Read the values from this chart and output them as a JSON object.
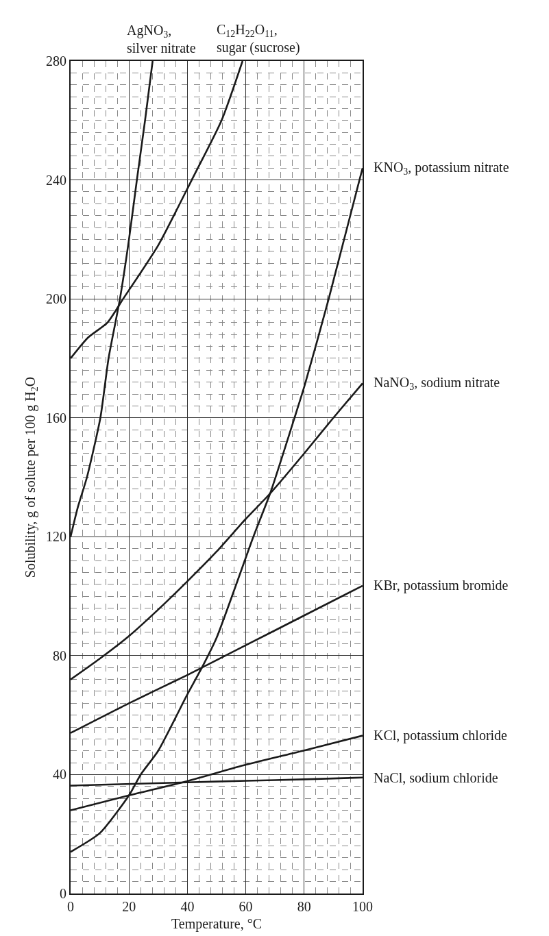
{
  "chart_data": {
    "type": "line",
    "xlabel": "Temperature, °C",
    "ylabel": "Solubility, g of solute per 100 g H$_{2}$O",
    "xlim": [
      0,
      100
    ],
    "xticks": [
      0,
      20,
      40,
      60,
      80,
      100
    ],
    "ylim": [
      0,
      280
    ],
    "yticks": [
      0,
      40,
      80,
      120,
      160,
      200,
      240,
      280
    ],
    "grid": true,
    "legend": false,
    "marker": "none",
    "line_style": "solid",
    "series": [
      {
        "name": "AgNO$_{3}$,\nsilver nitrate",
        "color": "#1a1a1a",
        "x": [
          0,
          2.5,
          5.6,
          10.2,
          13,
          16.9,
          20,
          22.7,
          25.5,
          28.1
        ],
        "values": [
          120,
          130,
          140,
          160,
          180,
          200,
          220,
          240,
          260,
          280
        ]
      },
      {
        "name": "C$_{12}$H$_{22}$O$_{11}$,\nsugar (sucrose)",
        "color": "#1a1a1a",
        "x": [
          0,
          6,
          12.6,
          18,
          30,
          41.5,
          51.7,
          58.9
        ],
        "values": [
          180,
          187,
          192,
          200,
          218,
          240,
          260,
          280
        ]
      },
      {
        "name": "KNO$_{3}$, potassium nitrate",
        "color": "#1a1a1a",
        "x": [
          0,
          10,
          20,
          24,
          30,
          40,
          45,
          50,
          62.6,
          68.5,
          76.7,
          80.2,
          88.4,
          100
        ],
        "values": [
          14,
          20.3,
          33,
          40,
          48,
          67,
          76,
          86,
          120,
          135,
          160,
          171,
          200,
          244
        ]
      },
      {
        "name": "NaNO$_{3}$, sodium nitrate",
        "color": "#1a1a1a",
        "x": [
          0,
          10,
          20,
          30,
          40,
          50,
          60,
          68.5,
          80,
          90,
          100
        ],
        "values": [
          72,
          79,
          86.6,
          95.5,
          105,
          115,
          126,
          134.7,
          148,
          160,
          171.6
        ]
      },
      {
        "name": "KBr, potassium bromide",
        "color": "#1a1a1a",
        "x": [
          0,
          20,
          40,
          60,
          80,
          100
        ],
        "values": [
          54,
          64,
          73.5,
          83.5,
          93.5,
          103.5
        ]
      },
      {
        "name": "KCl, potassium chloride",
        "color": "#1a1a1a",
        "x": [
          0,
          20,
          40,
          60,
          80,
          100
        ],
        "values": [
          28,
          33,
          37.8,
          43.3,
          48.1,
          53.1
        ]
      },
      {
        "name": "NaCl, sodium chloride",
        "color": "#1a1a1a",
        "x": [
          0,
          40,
          60,
          80,
          100
        ],
        "values": [
          36.3,
          37.4,
          37.9,
          38.4,
          39
        ]
      }
    ]
  }
}
